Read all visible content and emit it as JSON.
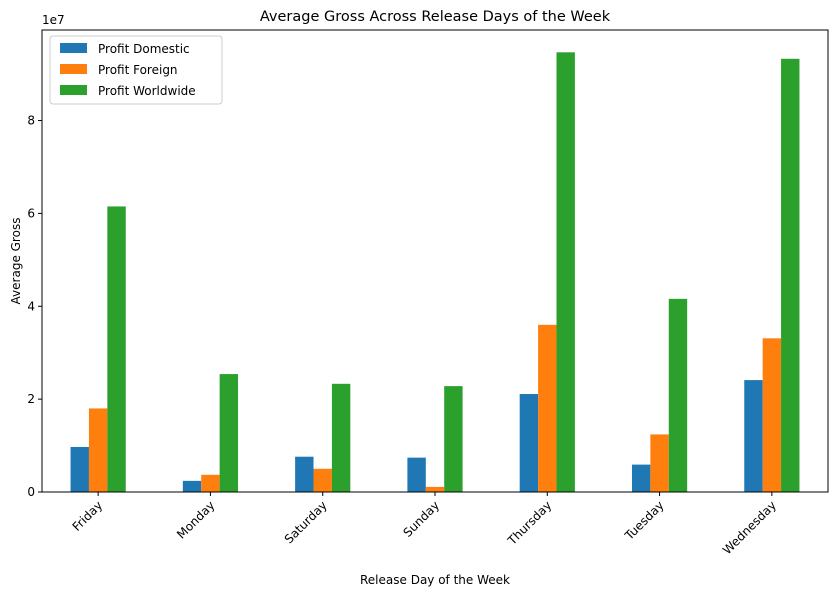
{
  "chart_data": {
    "type": "bar",
    "title": "Average Gross Across Release Days of the Week",
    "xlabel": "Release Day of the Week",
    "ylabel": "Average Gross",
    "y_offset_text": "1e7",
    "categories": [
      "Friday",
      "Monday",
      "Saturday",
      "Sunday",
      "Thursday",
      "Tuesday",
      "Wednesday"
    ],
    "series": [
      {
        "name": "Profit Domestic",
        "color": "#1f77b4",
        "values": [
          9700000,
          2400000,
          7600000,
          7400000,
          21100000,
          5900000,
          24100000
        ]
      },
      {
        "name": "Profit Foreign",
        "color": "#ff7f0e",
        "values": [
          18000000,
          3700000,
          5000000,
          1100000,
          36000000,
          12400000,
          33100000
        ]
      },
      {
        "name": " Profit Worldwide",
        "color": "#2ca02c",
        "values": [
          61500000,
          25400000,
          23300000,
          22800000,
          94700000,
          41600000,
          93300000
        ]
      }
    ],
    "ylim": [
      0,
      99500000
    ],
    "yticks": [
      0,
      20000000,
      40000000,
      60000000,
      80000000
    ],
    "ytick_labels": [
      "0",
      "2",
      "4",
      "6",
      "8"
    ],
    "legend_position": "top-left",
    "grid": false,
    "xtick_rotation": 45
  }
}
